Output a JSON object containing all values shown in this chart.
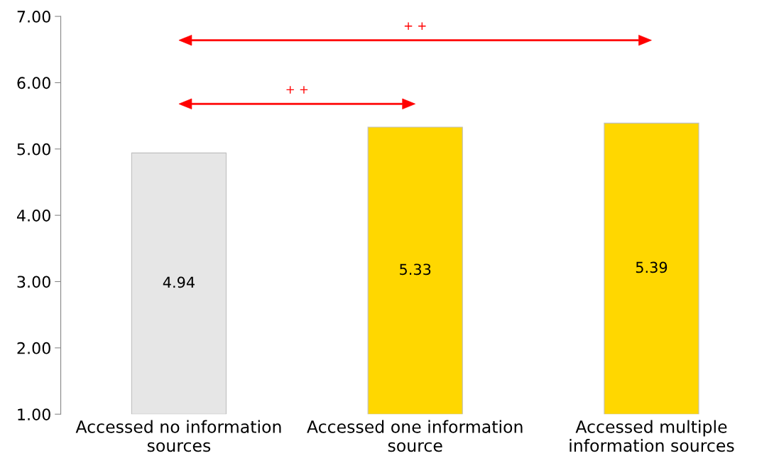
{
  "chart_data": {
    "type": "bar",
    "categories": [
      "Accessed no information sources",
      "Accessed one information source",
      "Accessed multiple information sources"
    ],
    "values": [
      4.94,
      5.33,
      5.39
    ],
    "colors": [
      "#e6e6e6",
      "#ffd700",
      "#ffd700"
    ],
    "data_labels": true,
    "ylim": [
      1,
      7
    ],
    "yticks": [
      {
        "value": 1,
        "label": "1.00"
      },
      {
        "value": 2,
        "label": "2.00"
      },
      {
        "value": 3,
        "label": "3.00"
      },
      {
        "value": 4,
        "label": "4.00"
      },
      {
        "value": 5,
        "label": "5.00"
      },
      {
        "value": 6,
        "label": "6.00"
      },
      {
        "value": 7,
        "label": "7.00"
      }
    ],
    "grid": false,
    "annotations": [
      "+ +",
      "+ +"
    ]
  }
}
